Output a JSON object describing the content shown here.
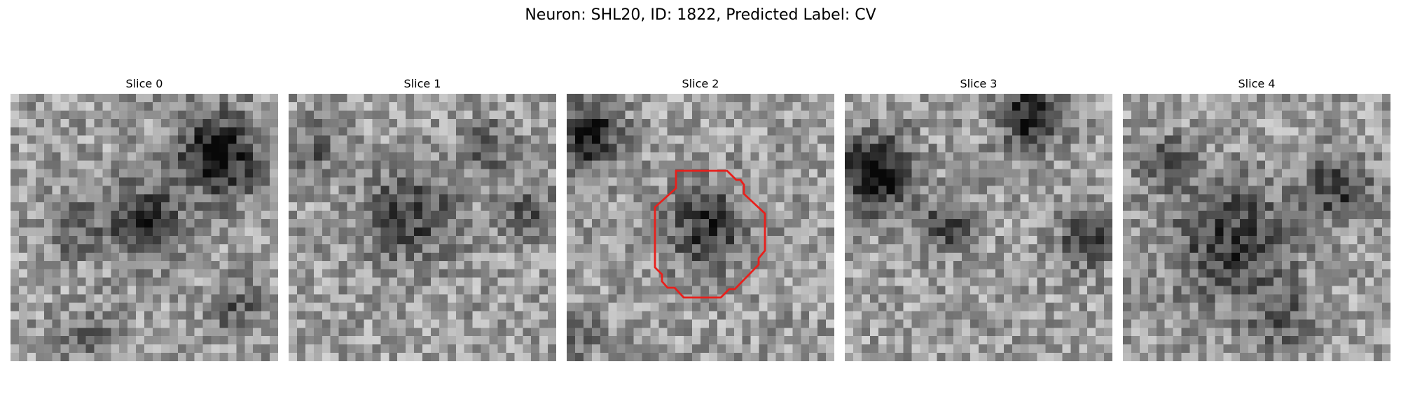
{
  "figure": {
    "title": "Neuron: SHL20, ID: 1822, Predicted Label: CV"
  },
  "panels": [
    {
      "title": "Slice 0",
      "outline": false
    },
    {
      "title": "Slice 1",
      "outline": false
    },
    {
      "title": "Slice 2",
      "outline": true
    },
    {
      "title": "Slice 3",
      "outline": false
    },
    {
      "title": "Slice 4",
      "outline": false
    }
  ],
  "image": {
    "grid": 32,
    "colormap": "gray",
    "outline_color": "#e8201c"
  }
}
